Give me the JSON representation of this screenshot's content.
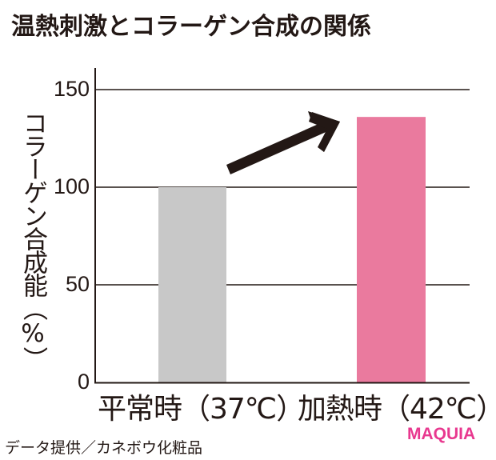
{
  "title": "温熱刺激とコラーゲン合成の関係",
  "source": "データ提供／カネボウ化粧品",
  "brand": "MAQUIA",
  "colors": {
    "text": "#231815",
    "bar_normal": "#c8c8c8",
    "bar_heated": "#ea7a9e",
    "arrow": "#231815",
    "brand": "#e8388f",
    "grid": "#231815"
  },
  "chart_data": {
    "type": "bar",
    "title": "温熱刺激とコラーゲン合成の関係",
    "xlabel": "",
    "ylabel": "コラーゲン合成能（%）",
    "categories": [
      "平常時（37℃）",
      "加熱時（42℃）"
    ],
    "values": [
      100,
      136
    ],
    "bar_colors": [
      "#c8c8c8",
      "#ea7a9e"
    ],
    "ylim": [
      0,
      150
    ],
    "yticks": [
      0,
      50,
      100,
      150
    ],
    "grid": true,
    "legend": null,
    "annotations": [
      "upward arrow from 平常時 bar toward 加熱時 bar indicating increase"
    ]
  },
  "axis": {
    "ylabel": "コラーゲン合成能（%）",
    "ticks": [
      "150",
      "100",
      "50",
      "0"
    ]
  },
  "categories": {
    "normal": "平常時（37℃）",
    "heated": "加熱時（42℃）"
  }
}
